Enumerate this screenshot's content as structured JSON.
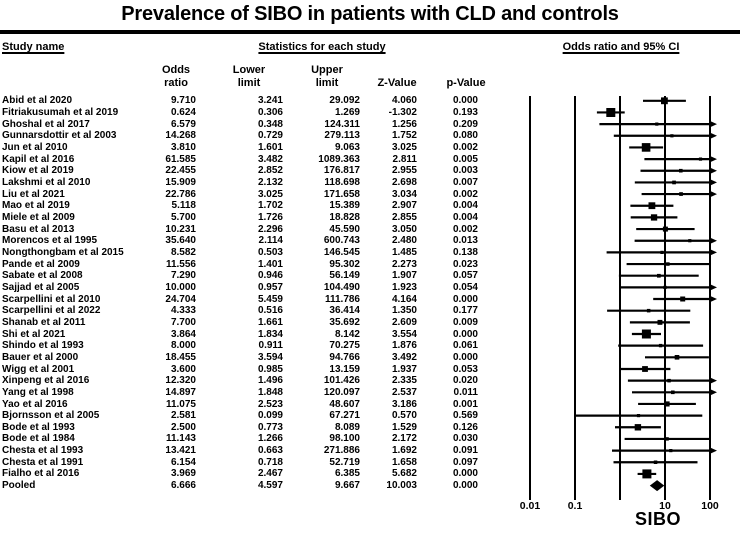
{
  "title": "Prevalence of SIBO in patients with CLD and controls",
  "section_headers": {
    "study_name": "Study name",
    "statistics": "Statistics for each study",
    "odds_ratio_ci": "Odds ratio and 95% CI"
  },
  "stat_columns": {
    "odds_line1": "Odds",
    "odds_line2": "ratio",
    "lower_line1": "Lower",
    "lower_line2": "limit",
    "upper_line1": "Upper",
    "upper_line2": "limit",
    "z": "Z-Value",
    "p": "p-Value"
  },
  "axis": {
    "label": "SIBO",
    "ticks": [
      {
        "value": 0.01,
        "label": "0.01"
      },
      {
        "value": 0.1,
        "label": "0.1"
      },
      {
        "value": 1,
        "label": ""
      },
      {
        "value": 10,
        "label": "10"
      },
      {
        "value": 100,
        "label": "100"
      }
    ]
  },
  "colors": {
    "ink": "#000000",
    "background": "#ffffff"
  },
  "chart_data": {
    "type": "scatter",
    "subtype": "forest_plot",
    "title": "Prevalence of SIBO in patients with CLD and controls",
    "x_scale": "log10",
    "xlim": [
      0.01,
      100
    ],
    "x_tick_labels": [
      "0.01",
      "0.1",
      "",
      "10",
      "100"
    ],
    "x_axis_label": "SIBO",
    "grid": "vertical gridlines at decades",
    "marker_style": "black square sized by study weight; CIs with upper limit > 100 clipped with right arrow",
    "pooled_marker": "diamond",
    "columns": [
      "Study name",
      "Odds ratio",
      "Lower limit",
      "Upper limit",
      "Z-Value",
      "p-Value"
    ],
    "studies": [
      {
        "name": "Abid et al 2020",
        "odds_ratio": "9.710",
        "lower": "3.241",
        "upper": "29.092",
        "z": "4.060",
        "p": "0.000"
      },
      {
        "name": "Fitriakusumah et al 2019",
        "odds_ratio": "0.624",
        "lower": "0.306",
        "upper": "1.269",
        "z": "-1.302",
        "p": "0.193"
      },
      {
        "name": "Ghoshal et al 2017",
        "odds_ratio": "6.579",
        "lower": "0.348",
        "upper": "124.311",
        "z": "1.256",
        "p": "0.209"
      },
      {
        "name": "Gunnarsdottir et al 2003",
        "odds_ratio": "14.268",
        "lower": "0.729",
        "upper": "279.113",
        "z": "1.752",
        "p": "0.080"
      },
      {
        "name": "Jun et al 2010",
        "odds_ratio": "3.810",
        "lower": "1.601",
        "upper": "9.063",
        "z": "3.025",
        "p": "0.002"
      },
      {
        "name": "Kapil et al 2016",
        "odds_ratio": "61.585",
        "lower": "3.482",
        "upper": "1089.363",
        "z": "2.811",
        "p": "0.005"
      },
      {
        "name": "Kiow et al 2019",
        "odds_ratio": "22.455",
        "lower": "2.852",
        "upper": "176.817",
        "z": "2.955",
        "p": "0.003"
      },
      {
        "name": "Lakshmi et al 2010",
        "odds_ratio": "15.909",
        "lower": "2.132",
        "upper": "118.698",
        "z": "2.698",
        "p": "0.007"
      },
      {
        "name": "Liu et al 2021",
        "odds_ratio": "22.786",
        "lower": "3.025",
        "upper": "171.658",
        "z": "3.034",
        "p": "0.002"
      },
      {
        "name": "Mao et al 2019",
        "odds_ratio": "5.118",
        "lower": "1.702",
        "upper": "15.389",
        "z": "2.907",
        "p": "0.004"
      },
      {
        "name": "Miele et al 2009",
        "odds_ratio": "5.700",
        "lower": "1.726",
        "upper": "18.828",
        "z": "2.855",
        "p": "0.004"
      },
      {
        "name": "Basu et al 2013",
        "odds_ratio": "10.231",
        "lower": "2.296",
        "upper": "45.590",
        "z": "3.050",
        "p": "0.002"
      },
      {
        "name": "Morencos et al 1995",
        "odds_ratio": "35.640",
        "lower": "2.114",
        "upper": "600.743",
        "z": "2.480",
        "p": "0.013"
      },
      {
        "name": "Nongthongbam et al 2015",
        "odds_ratio": "8.582",
        "lower": "0.503",
        "upper": "146.545",
        "z": "1.485",
        "p": "0.138"
      },
      {
        "name": "Pande et al 2009",
        "odds_ratio": "11.556",
        "lower": "1.401",
        "upper": "95.302",
        "z": "2.273",
        "p": "0.023"
      },
      {
        "name": "Sabate et al 2008",
        "odds_ratio": "7.290",
        "lower": "0.946",
        "upper": "56.149",
        "z": "1.907",
        "p": "0.057"
      },
      {
        "name": "Sajjad et al 2005",
        "odds_ratio": "10.000",
        "lower": "0.957",
        "upper": "104.490",
        "z": "1.923",
        "p": "0.054"
      },
      {
        "name": "Scarpellini et al 2010",
        "odds_ratio": "24.704",
        "lower": "5.459",
        "upper": "111.786",
        "z": "4.164",
        "p": "0.000"
      },
      {
        "name": "Scarpellini et al 2022",
        "odds_ratio": "4.333",
        "lower": "0.516",
        "upper": "36.414",
        "z": "1.350",
        "p": "0.177"
      },
      {
        "name": "Shanab et al 2011",
        "odds_ratio": "7.700",
        "lower": "1.661",
        "upper": "35.692",
        "z": "2.609",
        "p": "0.009"
      },
      {
        "name": "Shi et al 2021",
        "odds_ratio": "3.864",
        "lower": "1.834",
        "upper": "8.142",
        "z": "3.554",
        "p": "0.000"
      },
      {
        "name": "Shindo et al 1993",
        "odds_ratio": "8.000",
        "lower": "0.911",
        "upper": "70.275",
        "z": "1.876",
        "p": "0.061"
      },
      {
        "name": "Bauer et al 2000",
        "odds_ratio": "18.455",
        "lower": "3.594",
        "upper": "94.766",
        "z": "3.492",
        "p": "0.000"
      },
      {
        "name": "Wigg et al 2001",
        "odds_ratio": "3.600",
        "lower": "0.985",
        "upper": "13.159",
        "z": "1.937",
        "p": "0.053"
      },
      {
        "name": "Xinpeng et al 2016",
        "odds_ratio": "12.320",
        "lower": "1.496",
        "upper": "101.426",
        "z": "2.335",
        "p": "0.020"
      },
      {
        "name": "Yang et al 1998",
        "odds_ratio": "14.897",
        "lower": "1.848",
        "upper": "120.097",
        "z": "2.537",
        "p": "0.011"
      },
      {
        "name": "Yao et al 2016",
        "odds_ratio": "11.075",
        "lower": "2.523",
        "upper": "48.607",
        "z": "3.186",
        "p": "0.001"
      },
      {
        "name": "Bjornsson et al 2005",
        "odds_ratio": "2.581",
        "lower": "0.099",
        "upper": "67.271",
        "z": "0.570",
        "p": "0.569"
      },
      {
        "name": "Bode et al 1993",
        "odds_ratio": "2.500",
        "lower": "0.773",
        "upper": "8.089",
        "z": "1.529",
        "p": "0.126"
      },
      {
        "name": "Bode et al 1984",
        "odds_ratio": "11.143",
        "lower": "1.266",
        "upper": "98.100",
        "z": "2.172",
        "p": "0.030"
      },
      {
        "name": "Chesta et al 1993",
        "odds_ratio": "13.421",
        "lower": "0.663",
        "upper": "271.886",
        "z": "1.692",
        "p": "0.091"
      },
      {
        "name": "Chesta et al 1991",
        "odds_ratio": "6.154",
        "lower": "0.718",
        "upper": "52.719",
        "z": "1.658",
        "p": "0.097"
      },
      {
        "name": "Fialho et al 2016",
        "odds_ratio": "3.969",
        "lower": "2.467",
        "upper": "6.385",
        "z": "5.682",
        "p": "0.000"
      }
    ],
    "pooled": {
      "name": "Pooled",
      "odds_ratio": "6.666",
      "lower": "4.597",
      "upper": "9.667",
      "z": "10.003",
      "p": "0.000"
    }
  }
}
